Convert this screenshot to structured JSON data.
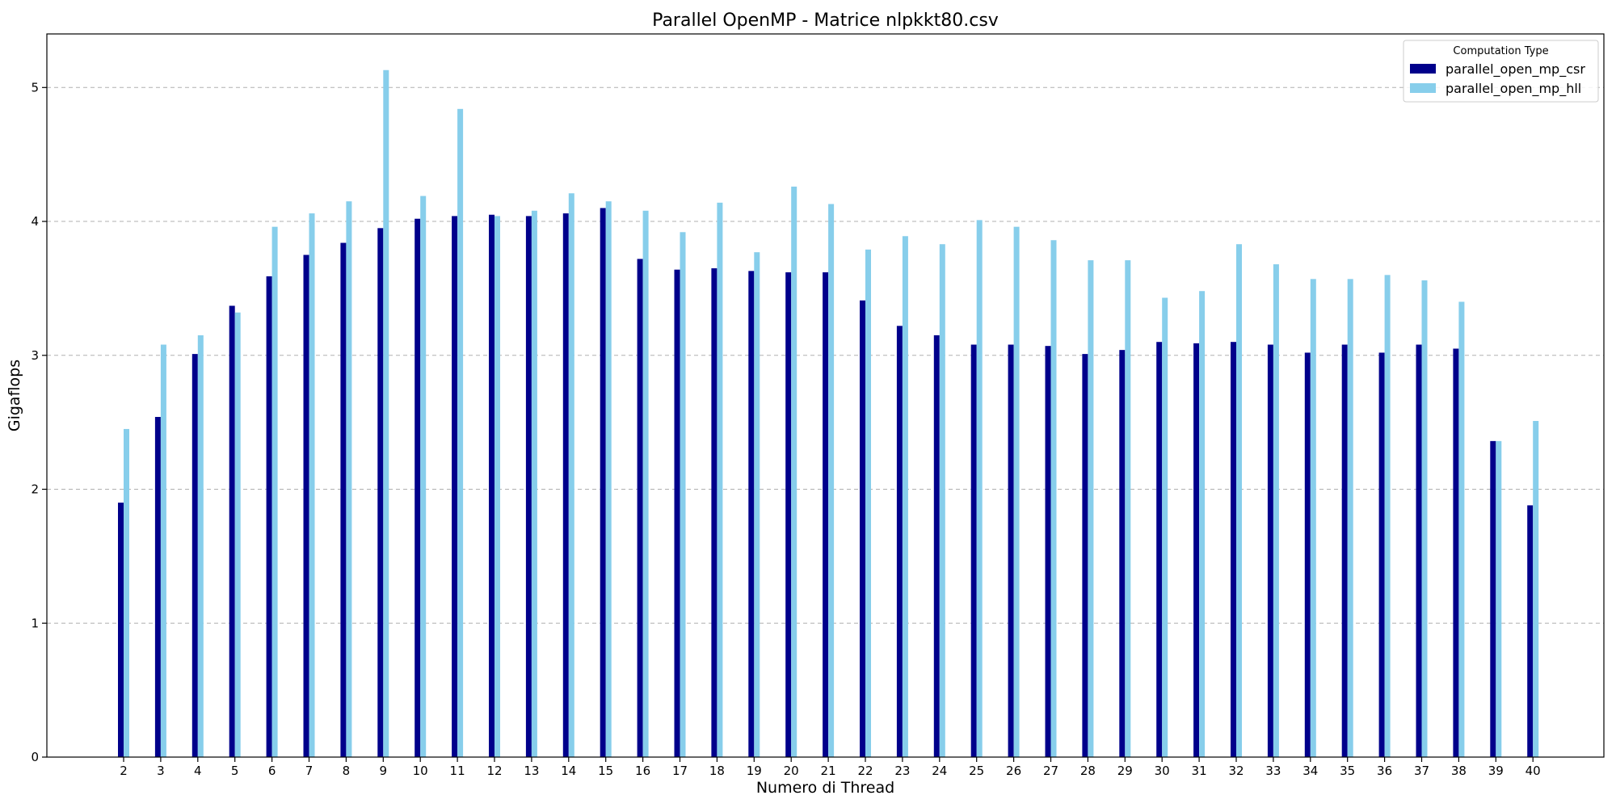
{
  "chart_data": {
    "type": "bar",
    "title": "Parallel OpenMP - Matrice nlpkkt80.csv",
    "xlabel": "Numero di Thread",
    "ylabel": "Gigaflops",
    "ylim": [
      0,
      5.4
    ],
    "yticks": [
      0,
      1,
      2,
      3,
      4,
      5
    ],
    "grid": "horizontal-dashed",
    "legend": {
      "title": "Computation Type",
      "placement": "top-right"
    },
    "categories": [
      "2",
      "3",
      "4",
      "5",
      "6",
      "7",
      "8",
      "9",
      "10",
      "11",
      "12",
      "13",
      "14",
      "15",
      "16",
      "17",
      "18",
      "19",
      "20",
      "21",
      "22",
      "23",
      "24",
      "25",
      "26",
      "27",
      "28",
      "29",
      "30",
      "31",
      "32",
      "33",
      "34",
      "35",
      "36",
      "37",
      "38",
      "39",
      "40"
    ],
    "series": [
      {
        "name": "parallel_open_mp_csr",
        "color": "#00008b",
        "values": [
          1.9,
          2.54,
          3.01,
          3.37,
          3.59,
          3.75,
          3.84,
          3.95,
          4.02,
          4.04,
          4.05,
          4.04,
          4.06,
          4.1,
          3.72,
          3.64,
          3.65,
          3.63,
          3.62,
          3.62,
          3.41,
          3.22,
          3.15,
          3.08,
          3.08,
          3.07,
          3.01,
          3.04,
          3.1,
          3.09,
          3.1,
          3.08,
          3.02,
          3.08,
          3.02,
          3.08,
          3.05,
          2.36,
          1.88
        ]
      },
      {
        "name": "parallel_open_mp_hll",
        "color": "#87ceeb",
        "values": [
          2.45,
          3.08,
          3.15,
          3.32,
          3.96,
          4.06,
          4.15,
          5.13,
          4.19,
          4.84,
          4.04,
          4.08,
          4.21,
          4.15,
          4.08,
          3.92,
          4.14,
          3.77,
          4.26,
          4.13,
          3.79,
          3.89,
          3.83,
          4.01,
          3.96,
          3.86,
          3.71,
          3.71,
          3.43,
          3.48,
          3.83,
          3.68,
          3.57,
          3.57,
          3.6,
          3.56,
          3.4,
          2.36,
          2.51
        ]
      }
    ]
  }
}
